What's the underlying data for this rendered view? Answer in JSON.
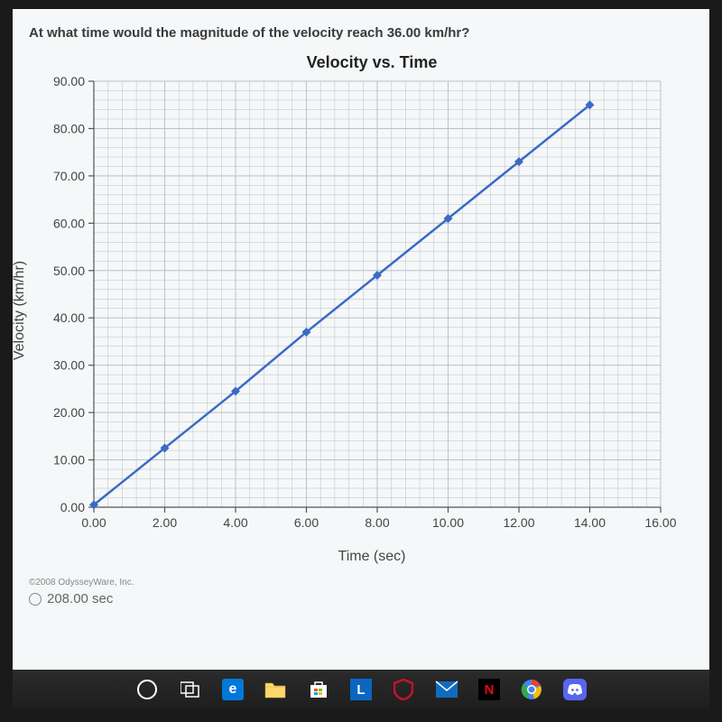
{
  "question": "At what time would the magnitude of the velocity reach 36.00 km/hr?",
  "chart": {
    "type": "line",
    "title": "Velocity vs. Time",
    "xlabel": "Time (sec)",
    "ylabel": "Velocity (km/hr)",
    "xlim": [
      0,
      16
    ],
    "ylim": [
      0,
      90
    ],
    "xtick_step": 2,
    "ytick_step": 10,
    "xtick_labels": [
      "0.00",
      "2.00",
      "4.00",
      "6.00",
      "8.00",
      "10.00",
      "12.00",
      "14.00",
      "16.00"
    ],
    "ytick_labels": [
      "0.00",
      "10.00",
      "20.00",
      "30.00",
      "40.00",
      "50.00",
      "60.00",
      "70.00",
      "80.00",
      "90.00"
    ],
    "minor_grid_div": 5,
    "grid_color": "#b9c2c8",
    "background_color": "#f5f7f8",
    "axis_line_color": "#555555",
    "line_color": "#3b6bc5",
    "marker_color": "#3b6bc5",
    "line_width": 2.5,
    "marker_size": 5,
    "title_fontsize": 18,
    "label_fontsize": 16,
    "tick_fontsize": 14,
    "points": [
      {
        "x": 0.0,
        "y": 0.5
      },
      {
        "x": 2.0,
        "y": 12.5
      },
      {
        "x": 4.0,
        "y": 24.5
      },
      {
        "x": 6.0,
        "y": 37.0
      },
      {
        "x": 8.0,
        "y": 49.0
      },
      {
        "x": 10.0,
        "y": 61.0
      },
      {
        "x": 12.0,
        "y": 73.0
      },
      {
        "x": 14.0,
        "y": 85.0
      }
    ]
  },
  "copyright": "©2008 OdysseyWare, Inc.",
  "option_a": "208.00 sec",
  "taskbar": {
    "cortana": "cortana",
    "taskview": "task-view",
    "edge": "e",
    "folder": "file-explorer",
    "store": "store",
    "l": "L",
    "mcafee": "mcafee",
    "mail": "mail",
    "netflix": "N",
    "chrome": "chrome",
    "discord": "discord"
  }
}
